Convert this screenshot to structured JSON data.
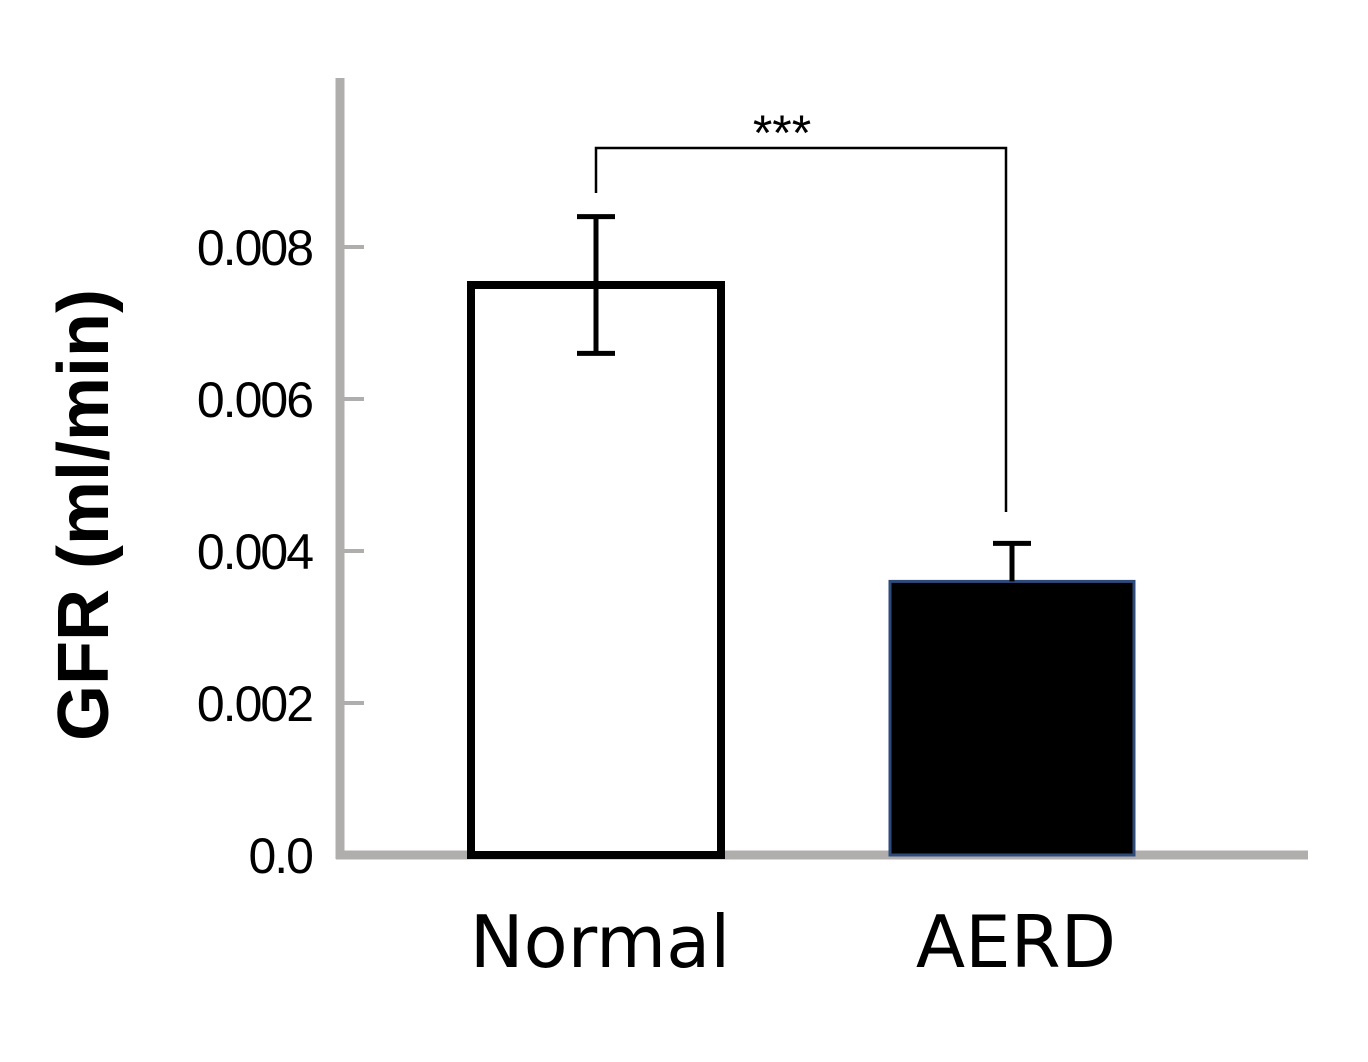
{
  "chart_data": {
    "type": "bar",
    "title": "",
    "xlabel": "",
    "ylabel": "GFR  (ml/min)",
    "categories": [
      "Normal",
      "AERD"
    ],
    "values": [
      0.0075,
      0.0036
    ],
    "errors": [
      0.0009,
      0.0005
    ],
    "error_display": [
      "both",
      "upper"
    ],
    "bar_fill": [
      "#ffffff",
      "#000000"
    ],
    "bar_edge": [
      "#000000",
      "#2e4a7a"
    ],
    "ylim": [
      0,
      0.0102
    ],
    "yticks": [
      0,
      0.002,
      0.004,
      0.006,
      0.008
    ],
    "ytick_labels": [
      "0.0",
      "0.002",
      "0.004",
      "0.006",
      "0.008"
    ],
    "grid": false,
    "axis_color": "#b0adad",
    "significance": {
      "from": "Normal",
      "to": "AERD",
      "label": "***"
    }
  }
}
